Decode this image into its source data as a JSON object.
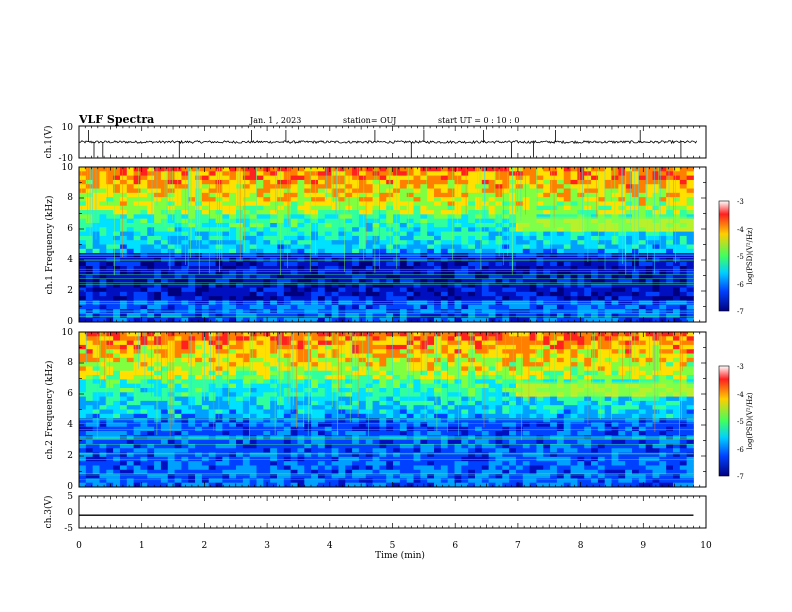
{
  "header": {
    "title": "VLF Spectra",
    "date": "Jan. 1 , 2023",
    "station": "station= OUJ",
    "start": "start UT =  0 : 10 : 0"
  },
  "chart_data": [
    {
      "type": "line",
      "name": "ch1-waveform",
      "ylabel": "ch.1(V)",
      "ylim": [
        -10,
        10
      ],
      "yticks": [
        "10",
        "-10"
      ],
      "x_range": [
        0,
        10
      ],
      "baseline": 0,
      "spikes_x": [
        0.15,
        0.24,
        0.38,
        1.6,
        2.75,
        3.3,
        4.72,
        5.3,
        5.5,
        6.45,
        6.9,
        7.25,
        7.6,
        8.95,
        9.6
      ]
    },
    {
      "type": "heatmap",
      "name": "ch1-spectrogram",
      "ylabel": "ch.1 Frequency (kHz)",
      "ylim": [
        0,
        10
      ],
      "yticks": [
        "0",
        "2",
        "4",
        "6",
        "8",
        "10"
      ],
      "x_range": [
        0,
        9.8
      ],
      "value_label": "log(PSD)(V²/Hz)",
      "value_range": [
        -7,
        -3
      ],
      "band_khz": [
        5.9,
        6.8
      ],
      "band_start_min": 7.0
    },
    {
      "type": "heatmap",
      "name": "ch2-spectrogram",
      "ylabel": "ch.2 Frequency (kHz)",
      "ylim": [
        0,
        10
      ],
      "yticks": [
        "0",
        "2",
        "4",
        "6",
        "8",
        "10"
      ],
      "x_range": [
        0,
        9.8
      ],
      "value_label": "log(PSD)(V²/Hz)",
      "value_range": [
        -7,
        -3
      ],
      "band_khz": [
        5.9,
        6.8
      ],
      "band_start_min": 7.0
    },
    {
      "type": "line",
      "name": "ch3-waveform",
      "ylabel": "ch.3(V)",
      "ylim": [
        -5,
        5
      ],
      "yticks": [
        "5",
        "0",
        "-5"
      ],
      "x_range": [
        0,
        9.8
      ],
      "value": -1
    }
  ],
  "xaxis": {
    "label": "Time (min)",
    "range": [
      0,
      10
    ],
    "ticks": [
      "0",
      "1",
      "2",
      "3",
      "4",
      "5",
      "6",
      "7",
      "8",
      "9",
      "10"
    ]
  },
  "colorbar": {
    "label": "log(PSD)(V²/Hz)",
    "ticks": [
      "-3",
      "-4",
      "-5",
      "-6",
      "-7"
    ],
    "colors": [
      "#ffffff",
      "#ff2020",
      "#ffcf00",
      "#40ff60",
      "#00d0ff",
      "#0040ff",
      "#00007f"
    ]
  }
}
